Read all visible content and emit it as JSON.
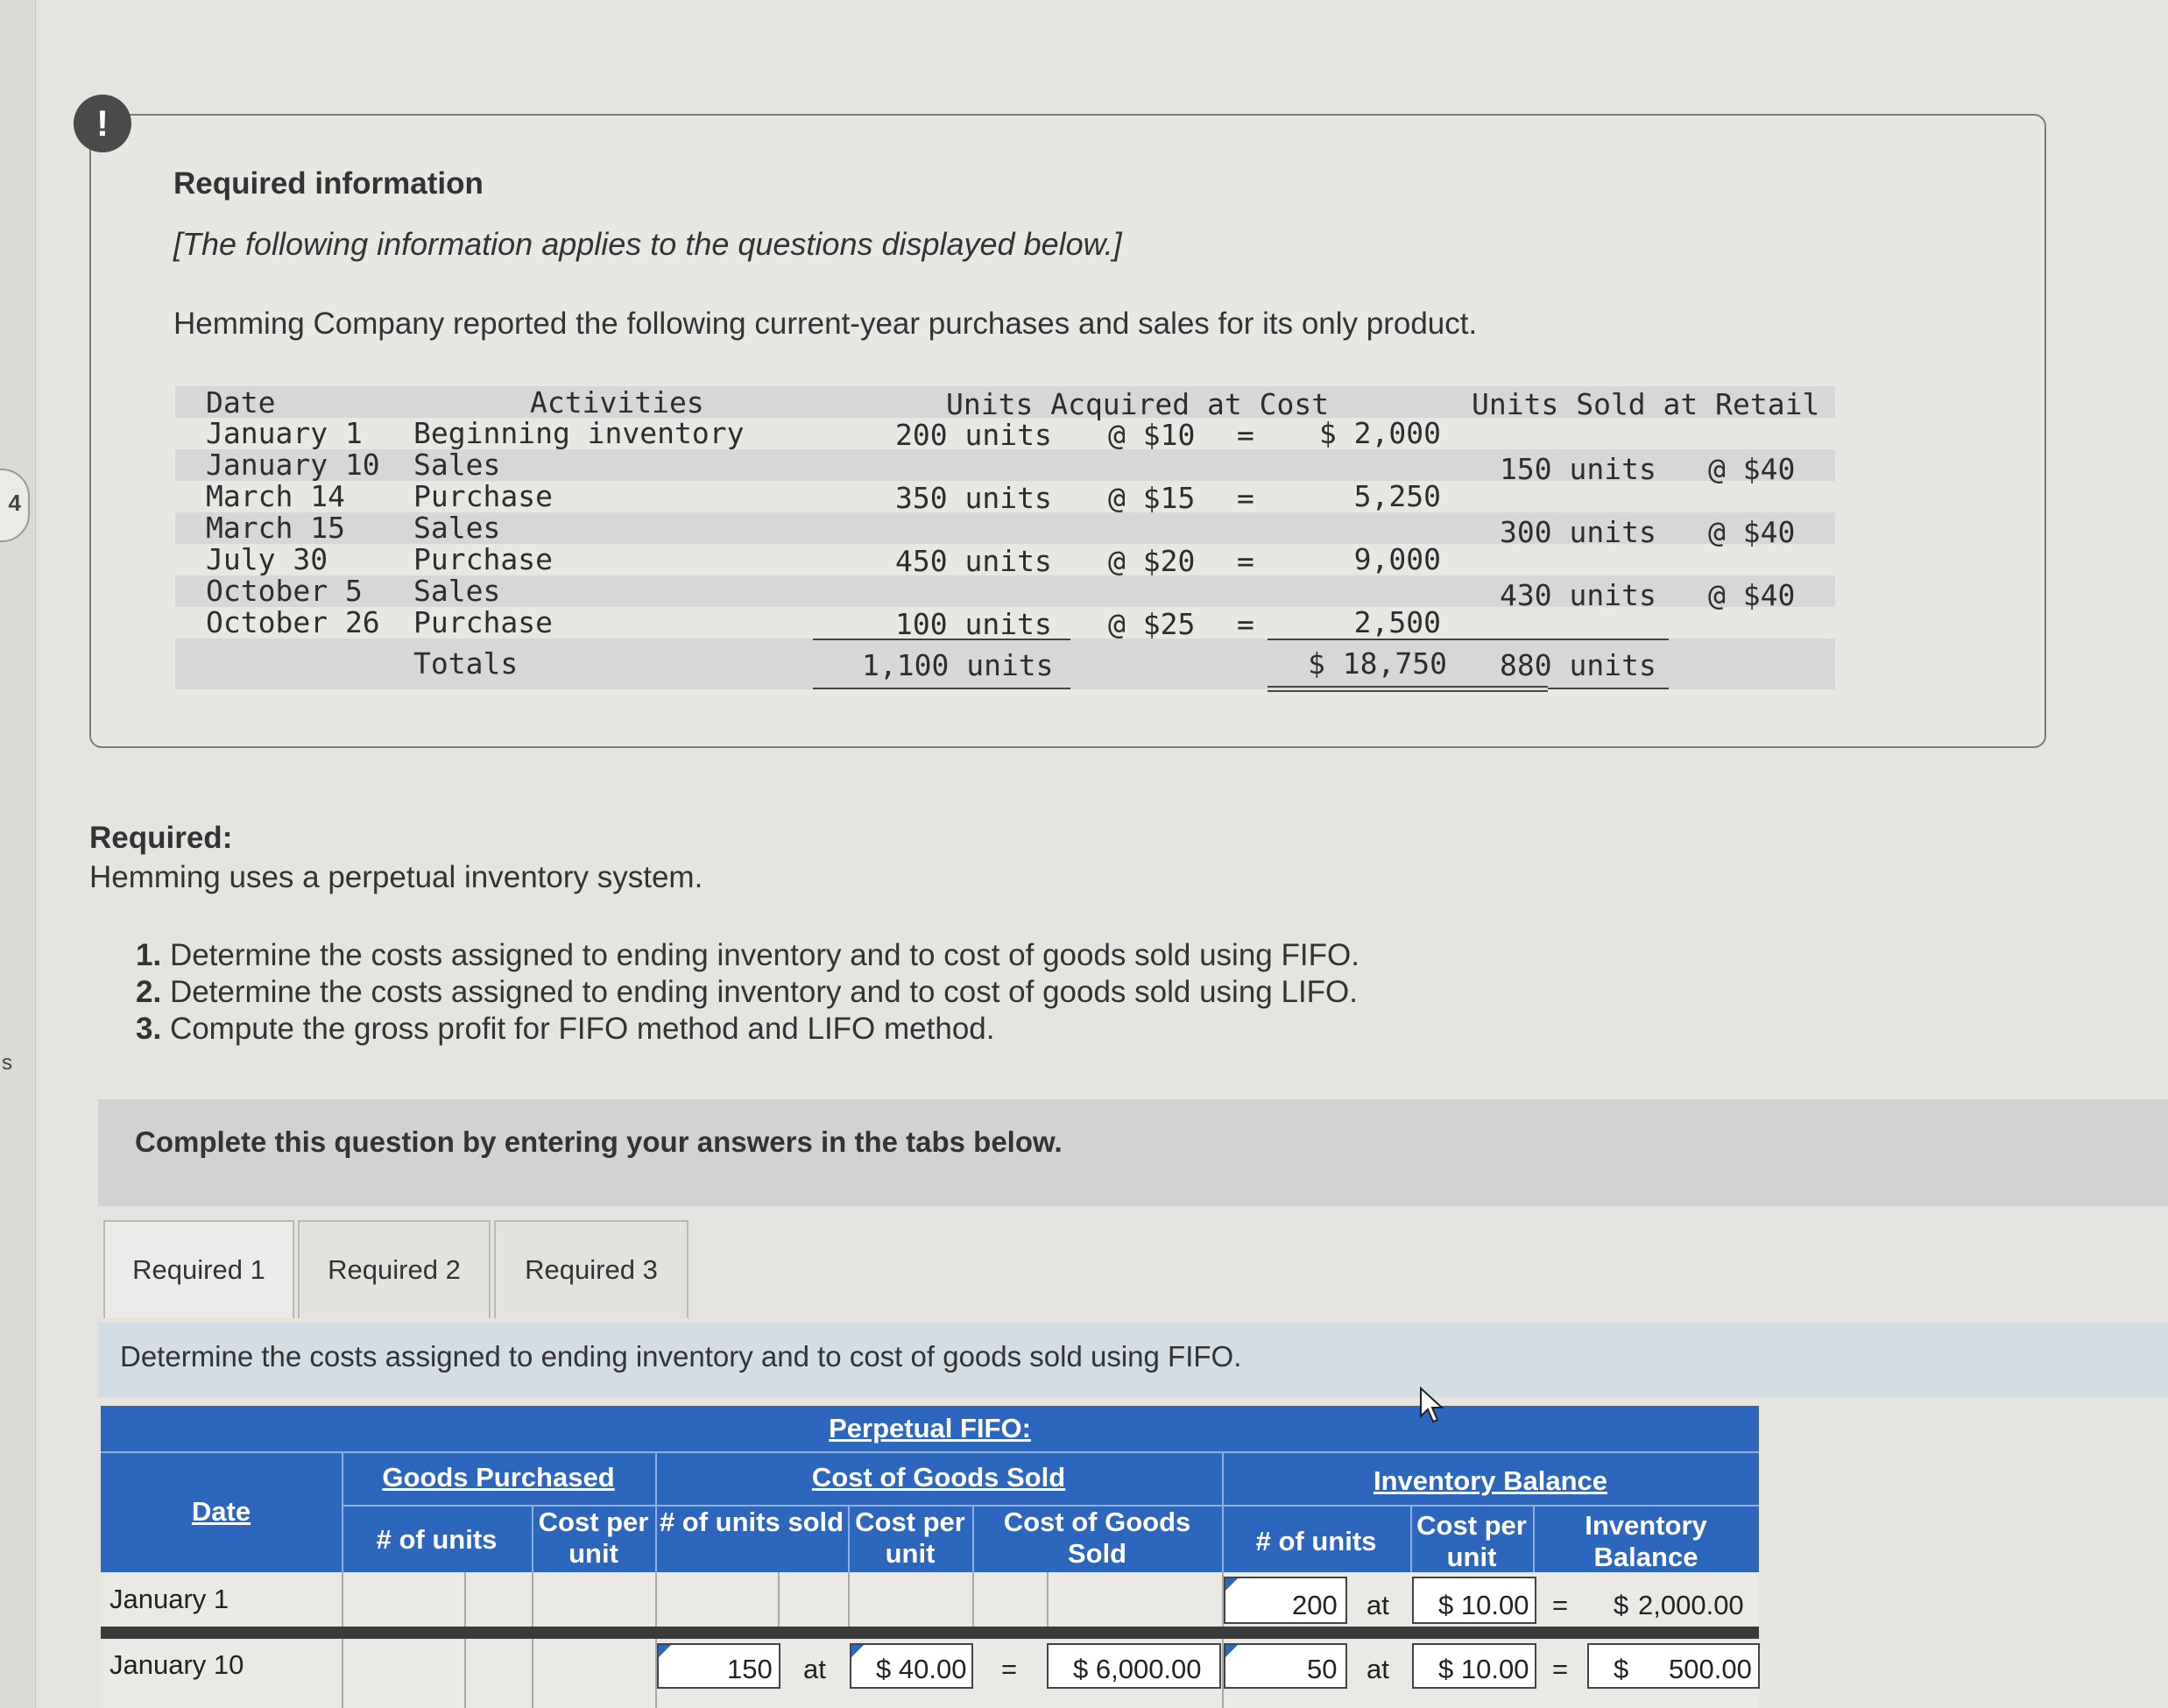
{
  "sidebar": {
    "badge": "4",
    "letter": "s"
  },
  "info": {
    "title": "Required information",
    "italic": "[The following information applies to the questions displayed below.]",
    "intro": "Hemming Company reported the following current-year purchases and sales for its only product.",
    "headers": {
      "date": "Date",
      "activities": "Activities",
      "acquired": "Units Acquired at Cost",
      "sold": "Units Sold at Retail"
    },
    "rows": [
      {
        "date": "January 1",
        "activity": "Beginning inventory",
        "acq_units": "200 units",
        "acq_price": "@ $10",
        "eq": "=",
        "acq_cost": "$ 2,000",
        "sold_units": "",
        "sold_price": ""
      },
      {
        "date": "January 10",
        "activity": "Sales",
        "acq_units": "",
        "acq_price": "",
        "eq": "",
        "acq_cost": "",
        "sold_units": "150 units",
        "sold_price": "@ $40"
      },
      {
        "date": "March 14",
        "activity": "Purchase",
        "acq_units": "350 units",
        "acq_price": "@ $15",
        "eq": "=",
        "acq_cost": "5,250",
        "sold_units": "",
        "sold_price": ""
      },
      {
        "date": "March 15",
        "activity": "Sales",
        "acq_units": "",
        "acq_price": "",
        "eq": "",
        "acq_cost": "",
        "sold_units": "300 units",
        "sold_price": "@ $40"
      },
      {
        "date": "July 30",
        "activity": "Purchase",
        "acq_units": "450 units",
        "acq_price": "@ $20",
        "eq": "=",
        "acq_cost": "9,000",
        "sold_units": "",
        "sold_price": ""
      },
      {
        "date": "October 5",
        "activity": "Sales",
        "acq_units": "",
        "acq_price": "",
        "eq": "",
        "acq_cost": "",
        "sold_units": "430 units",
        "sold_price": "@ $40"
      },
      {
        "date": "October 26",
        "activity": "Purchase",
        "acq_units": "100 units",
        "acq_price": "@ $25",
        "eq": "=",
        "acq_cost": "2,500",
        "sold_units": "",
        "sold_price": ""
      }
    ],
    "totals": {
      "label": "Totals",
      "acq_units": "1,100 units",
      "acq_cost": "$ 18,750",
      "sold_units": "880 units"
    }
  },
  "required": {
    "label": "Required:",
    "text": "Hemming uses a perpetual inventory system.",
    "items": [
      {
        "num": "1.",
        "text": "Determine the costs assigned to ending inventory and to cost of goods sold using FIFO."
      },
      {
        "num": "2.",
        "text": "Determine the costs assigned to ending inventory and to cost of goods sold using LIFO."
      },
      {
        "num": "3.",
        "text": "Compute the gross profit for FIFO method and LIFO method."
      }
    ]
  },
  "complete_text": "Complete this question by entering your answers in the tabs below.",
  "tabs": [
    "Required 1",
    "Required 2",
    "Required 3"
  ],
  "instruction": "Determine the costs assigned to ending inventory and to cost of goods sold using FIFO.",
  "fifo": {
    "title": "Perpetual FIFO:",
    "date_header": "Date",
    "groups": {
      "purchased": "Goods Purchased",
      "cogs": "Cost of Goods Sold",
      "balance": "Inventory Balance"
    },
    "cols": {
      "p_units": "# of units",
      "p_cost": "Cost per unit",
      "c_units": "# of units sold",
      "c_cost": "Cost per unit",
      "c_total": "Cost of Goods Sold",
      "b_units": "# of units",
      "b_cost": "Cost per unit",
      "b_total": "Inventory Balance"
    },
    "rows": [
      {
        "date": "January 1",
        "c_units": "",
        "c_at": "",
        "c_cost": "",
        "c_eq": "",
        "c_total": "",
        "b_units": "200",
        "b_at": "at",
        "b_cost": "$ 10.00",
        "b_eq": "=",
        "b_dollar": "$",
        "b_total": "2,000.00"
      },
      {
        "date": "January 10",
        "c_units": "150",
        "c_at": "at",
        "c_cost": "$ 40.00",
        "c_eq": "=",
        "c_total": "$ 6,000.00",
        "b_units": "50",
        "b_at": "at",
        "b_cost": "$ 10.00",
        "b_eq": "=",
        "b_dollar": "$",
        "b_total": "500.00"
      }
    ]
  }
}
